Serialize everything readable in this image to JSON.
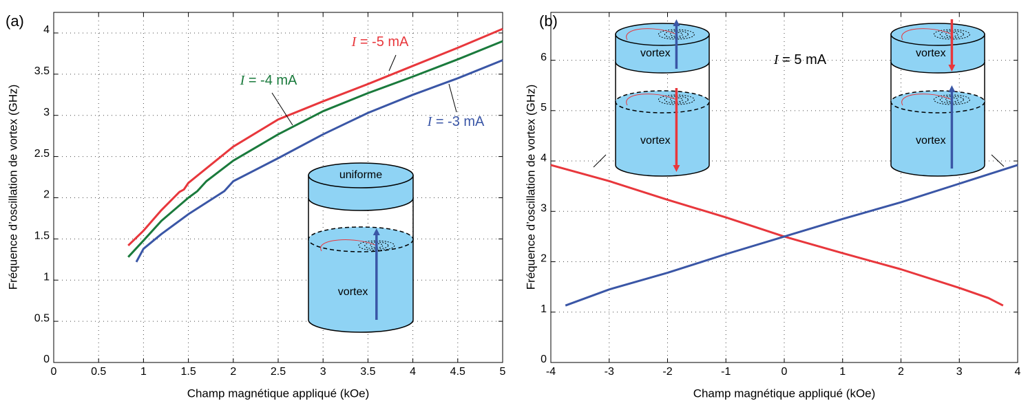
{
  "chart_data": [
    {
      "type": "line",
      "panel_label": "(a)",
      "x_label": "Champ magnétique appliqué (kOe)",
      "y_label": "Fréquence d’oscillation de vortex (GHz)",
      "xlim": [
        0,
        5
      ],
      "ylim": [
        0,
        4.25
      ],
      "xticks": [
        0,
        0.5,
        1,
        1.5,
        2,
        2.5,
        3,
        3.5,
        4,
        4.5,
        5
      ],
      "yticks": [
        0,
        0.5,
        1,
        1.5,
        2,
        2.5,
        3,
        3.5,
        4
      ],
      "grid": true,
      "series": [
        {
          "name": "I = -5 mA",
          "color": "#e8373c",
          "x": [
            0.83,
            1,
            1.2,
            1.4,
            1.45,
            1.5,
            2,
            2.5,
            3,
            3.5,
            4,
            4.5,
            5
          ],
          "values": [
            1.42,
            1.6,
            1.85,
            2.07,
            2.1,
            2.18,
            2.62,
            2.95,
            3.17,
            3.38,
            3.6,
            3.82,
            4.05
          ]
        },
        {
          "name": "I = -4 mA",
          "color": "#1a7a3c",
          "x": [
            0.83,
            1,
            1.2,
            1.5,
            1.6,
            1.7,
            2,
            2.5,
            3,
            3.5,
            4,
            4.5,
            5
          ],
          "values": [
            1.28,
            1.48,
            1.72,
            2.0,
            2.08,
            2.2,
            2.45,
            2.77,
            3.05,
            3.27,
            3.47,
            3.68,
            3.9
          ]
        },
        {
          "name": "I = -3 mA",
          "color": "#3a56a6",
          "x": [
            0.92,
            1,
            1.2,
            1.5,
            1.9,
            2,
            2.5,
            3,
            3.5,
            4,
            4.5,
            5
          ],
          "values": [
            1.22,
            1.38,
            1.56,
            1.8,
            2.08,
            2.2,
            2.48,
            2.77,
            3.03,
            3.25,
            3.45,
            3.67
          ]
        }
      ],
      "inset_labels": [
        "uniforme",
        "vortex"
      ]
    },
    {
      "type": "line",
      "panel_label": "(b)",
      "x_label": "Champ magnétique appliqué (kOe)",
      "y_label": "Fréquence d’oscillation de vortex (GHz)",
      "xlim": [
        -4,
        4
      ],
      "ylim": [
        0,
        6.95
      ],
      "xticks": [
        -4,
        -3,
        -2,
        -1,
        0,
        1,
        2,
        3,
        4
      ],
      "yticks": [
        0,
        1,
        2,
        3,
        4,
        5,
        6
      ],
      "grid": true,
      "series": [
        {
          "color": "#e8373c",
          "x": [
            -4,
            -3,
            -2,
            -1,
            0,
            1,
            2,
            3,
            3.5,
            3.75
          ],
          "values": [
            3.92,
            3.6,
            3.23,
            2.88,
            2.5,
            2.17,
            1.85,
            1.48,
            1.28,
            1.13
          ]
        },
        {
          "color": "#3a56a6",
          "x": [
            -3.75,
            -3,
            -2,
            -1,
            0,
            1,
            2,
            3,
            4
          ],
          "values": [
            1.13,
            1.45,
            1.78,
            2.15,
            2.5,
            2.85,
            3.18,
            3.55,
            3.92
          ]
        }
      ],
      "annotations": [
        "I = 5 mA"
      ],
      "inset_labels": [
        "vortex",
        "vortex",
        "vortex",
        "vortex"
      ]
    }
  ]
}
